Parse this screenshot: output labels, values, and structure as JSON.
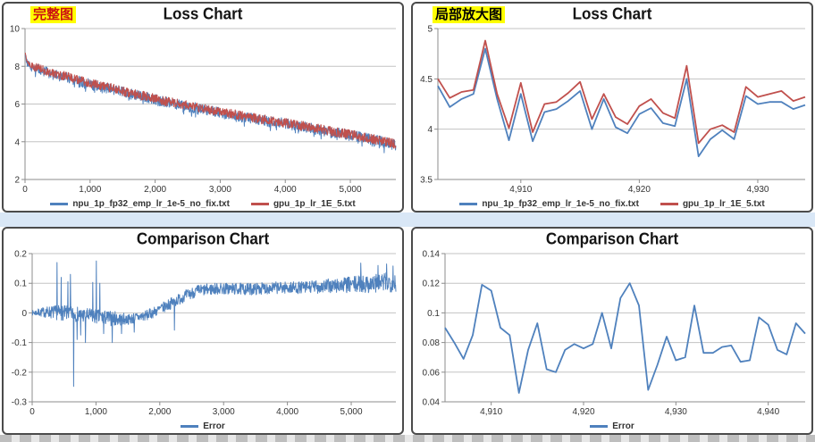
{
  "page": {
    "highlight": "#ffff00",
    "divider_color": "#d9e7f6",
    "accent_blue": "#4f81bd",
    "accent_red": "#c0504d"
  },
  "chart_data": [
    {
      "type": "line",
      "title": "Loss Chart",
      "corner_label": "完整图",
      "corner_label_color": "#cc1111",
      "xlim": [
        0,
        5700
      ],
      "ylim": [
        2,
        10
      ],
      "xticks": [
        0,
        1000,
        2000,
        3000,
        4000,
        5000
      ],
      "xtick_labels": [
        "0",
        "1,000",
        "2,000",
        "3,000",
        "4,000",
        "5,000"
      ],
      "yticks": [
        2,
        4,
        6,
        8,
        10
      ],
      "ytick_labels": [
        "2",
        "4",
        "6",
        "8",
        "10"
      ],
      "grid": true,
      "legend_position": "bottom",
      "margin_left": 24,
      "line_width": 1,
      "legend": [
        {
          "label": "npu_1p_fp32_emp_lr_1e-5_no_fix.txt",
          "color": "#4f81bd"
        },
        {
          "label": "gpu_1p_lr_1E_5.txt",
          "color": "#c0504d"
        }
      ],
      "series": [
        {
          "name": "npu_1p_fp32_emp_lr_1e-5_no_fix.txt",
          "color": "#4f81bd",
          "gen": {
            "seed": 101,
            "step": 5,
            "offset": -0.05,
            "extra_dip": 0.3,
            "keypoints": [
              [
                0,
                8.7
              ],
              [
                30,
                8.3
              ],
              [
                100,
                8.05
              ],
              [
                200,
                7.9
              ],
              [
                400,
                7.65
              ],
              [
                600,
                7.5
              ],
              [
                800,
                7.3
              ],
              [
                1000,
                7.1
              ],
              [
                1200,
                6.95
              ],
              [
                1400,
                6.78
              ],
              [
                1600,
                6.6
              ],
              [
                1800,
                6.45
              ],
              [
                2000,
                6.28
              ],
              [
                2200,
                6.12
              ],
              [
                2400,
                6.0
              ],
              [
                2600,
                5.85
              ],
              [
                2800,
                5.72
              ],
              [
                3000,
                5.6
              ],
              [
                3200,
                5.47
              ],
              [
                3400,
                5.35
              ],
              [
                3600,
                5.22
              ],
              [
                3800,
                5.1
              ],
              [
                4000,
                5.0
              ],
              [
                4200,
                4.87
              ],
              [
                4400,
                4.75
              ],
              [
                4600,
                4.62
              ],
              [
                4800,
                4.5
              ],
              [
                5000,
                4.38
              ],
              [
                5200,
                4.25
              ],
              [
                5400,
                4.1
              ],
              [
                5600,
                3.95
              ],
              [
                5700,
                3.87
              ]
            ],
            "amp_zones": [
              [
                0,
                0.1
              ],
              [
                150,
                0.28
              ],
              [
                5700,
                0.3
              ]
            ]
          }
        },
        {
          "name": "gpu_1p_lr_1E_5.txt",
          "color": "#c0504d",
          "gen": {
            "seed": 55,
            "step": 5,
            "offset": 0,
            "keypoints": [
              [
                0,
                8.7
              ],
              [
                30,
                8.3
              ],
              [
                100,
                8.05
              ],
              [
                200,
                7.9
              ],
              [
                400,
                7.65
              ],
              [
                600,
                7.5
              ],
              [
                800,
                7.3
              ],
              [
                1000,
                7.1
              ],
              [
                1200,
                6.95
              ],
              [
                1400,
                6.78
              ],
              [
                1600,
                6.6
              ],
              [
                1800,
                6.45
              ],
              [
                2000,
                6.28
              ],
              [
                2200,
                6.12
              ],
              [
                2400,
                6.0
              ],
              [
                2600,
                5.85
              ],
              [
                2800,
                5.72
              ],
              [
                3000,
                5.6
              ],
              [
                3200,
                5.47
              ],
              [
                3400,
                5.35
              ],
              [
                3600,
                5.22
              ],
              [
                3800,
                5.1
              ],
              [
                4000,
                5.0
              ],
              [
                4200,
                4.87
              ],
              [
                4400,
                4.75
              ],
              [
                4600,
                4.62
              ],
              [
                4800,
                4.5
              ],
              [
                5000,
                4.38
              ],
              [
                5200,
                4.25
              ],
              [
                5400,
                4.1
              ],
              [
                5600,
                3.95
              ],
              [
                5700,
                3.87
              ]
            ],
            "amp_zones": [
              [
                0,
                0.09
              ],
              [
                150,
                0.24
              ],
              [
                5700,
                0.26
              ]
            ]
          }
        }
      ]
    },
    {
      "type": "line",
      "title": "Loss Chart",
      "corner_label": "局部放大图",
      "corner_label_color": "#000000",
      "xlim": [
        4903,
        4934
      ],
      "ylim": [
        3.5,
        5
      ],
      "xticks": [
        4910,
        4920,
        4930
      ],
      "xtick_labels": [
        "4,910",
        "4,920",
        "4,930"
      ],
      "yticks": [
        3.5,
        4,
        4.5,
        5
      ],
      "ytick_labels": [
        "3.5",
        "4",
        "4.5",
        "5"
      ],
      "grid": true,
      "legend_position": "bottom",
      "margin_left": 28,
      "line_width": 1.8,
      "legend": [
        {
          "label": "npu_1p_fp32_emp_lr_1e-5_no_fix.txt",
          "color": "#4f81bd"
        },
        {
          "label": "gpu_1p_lr_1E_5.txt",
          "color": "#c0504d"
        }
      ],
      "series": [
        {
          "name": "npu_1p_fp32_emp_lr_1e-5_no_fix.txt",
          "color": "#4f81bd",
          "x_start": 4903,
          "x_step": 1,
          "values": [
            4.43,
            4.22,
            4.3,
            4.35,
            4.8,
            4.3,
            3.89,
            4.35,
            3.88,
            4.17,
            4.2,
            4.28,
            4.38,
            4.0,
            4.3,
            4.02,
            3.96,
            4.15,
            4.21,
            4.06,
            4.03,
            4.5,
            3.73,
            3.9,
            3.99,
            3.9,
            4.33,
            4.25,
            4.27,
            4.27,
            4.2,
            4.24
          ]
        },
        {
          "name": "gpu_1p_lr_1E_5.txt",
          "color": "#c0504d",
          "x_start": 4903,
          "x_step": 1,
          "values": [
            4.5,
            4.31,
            4.37,
            4.39,
            4.88,
            4.35,
            4.01,
            4.46,
            3.97,
            4.25,
            4.27,
            4.36,
            4.47,
            4.1,
            4.35,
            4.12,
            4.05,
            4.23,
            4.3,
            4.16,
            4.11,
            4.63,
            3.86,
            4.0,
            4.04,
            3.97,
            4.42,
            4.32,
            4.35,
            4.38,
            4.28,
            4.32
          ]
        }
      ]
    },
    {
      "type": "line",
      "title": "Comparison Chart",
      "xlim": [
        0,
        5700
      ],
      "ylim": [
        -0.3,
        0.2
      ],
      "xticks": [
        0,
        1000,
        2000,
        3000,
        4000,
        5000
      ],
      "xtick_labels": [
        "0",
        "1,000",
        "2,000",
        "3,000",
        "4,000",
        "5,000"
      ],
      "yticks": [
        -0.3,
        -0.2,
        -0.1,
        0,
        0.1,
        0.2
      ],
      "ytick_labels": [
        "-0.3",
        "-0.2",
        "-0.1",
        "0",
        "0.1",
        "0.2"
      ],
      "grid": true,
      "legend_position": "bottom",
      "margin_left": 32,
      "line_width": 1,
      "legend": [
        {
          "label": "Error",
          "color": "#4f81bd"
        }
      ],
      "series": [
        {
          "name": "Error",
          "color": "#4f81bd",
          "gen": {
            "seed": 7,
            "step": 5,
            "offset": 0,
            "keypoints": [
              [
                0,
                0
              ],
              [
                250,
                0.003
              ],
              [
                600,
                -0.002
              ],
              [
                900,
                -0.01
              ],
              [
                1200,
                -0.018
              ],
              [
                1500,
                -0.022
              ],
              [
                1800,
                -0.008
              ],
              [
                2000,
                0.012
              ],
              [
                2200,
                0.035
              ],
              [
                2400,
                0.058
              ],
              [
                2600,
                0.075
              ],
              [
                2900,
                0.082
              ],
              [
                3400,
                0.08
              ],
              [
                3800,
                0.085
              ],
              [
                4200,
                0.085
              ],
              [
                4600,
                0.09
              ],
              [
                5000,
                0.095
              ],
              [
                5400,
                0.1
              ],
              [
                5700,
                0.105
              ]
            ],
            "amp_zones": [
              [
                0,
                0.008
              ],
              [
                200,
                0.018
              ],
              [
                400,
                0.025
              ],
              [
                1300,
                0.025
              ],
              [
                1500,
                0.018
              ],
              [
                1900,
                0.018
              ],
              [
                2600,
                0.02
              ],
              [
                4200,
                0.02
              ],
              [
                5000,
                0.028
              ],
              [
                5700,
                0.035
              ]
            ],
            "spikes": [
              [
                390,
                0.17
              ],
              [
                455,
                0.12
              ],
              [
                560,
                0.105
              ],
              [
                600,
                0.13
              ],
              [
                650,
                -0.248
              ],
              [
                705,
                -0.09
              ],
              [
                760,
                -0.075
              ],
              [
                835,
                -0.1
              ],
              [
                950,
                0.103
              ],
              [
                1005,
                0.175
              ],
              [
                1060,
                0.1
              ],
              [
                1120,
                -0.07
              ],
              [
                1255,
                -0.1
              ],
              [
                1400,
                -0.07
              ],
              [
                1600,
                -0.065
              ],
              [
                2230,
                -0.058
              ],
              [
                5150,
                0.168
              ],
              [
                5420,
                0.16
              ],
              [
                5555,
                0.165
              ],
              [
                5655,
                0.158
              ]
            ]
          }
        }
      ]
    },
    {
      "type": "line",
      "title": "Comparison Chart",
      "xlim": [
        4905,
        4944
      ],
      "ylim": [
        0.04,
        0.14
      ],
      "xticks": [
        4910,
        4920,
        4930,
        4940
      ],
      "xtick_labels": [
        "4,910",
        "4,920",
        "4,930",
        "4,940"
      ],
      "yticks": [
        0.04,
        0.06,
        0.08,
        0.1,
        0.12,
        0.14
      ],
      "ytick_labels": [
        "0.04",
        "0.06",
        "0.08",
        "0.1",
        "0.12",
        "0.14"
      ],
      "grid": true,
      "legend_position": "bottom",
      "margin_left": 36,
      "line_width": 1.8,
      "legend": [
        {
          "label": "Error",
          "color": "#4f81bd"
        }
      ],
      "series": [
        {
          "name": "Error",
          "color": "#4f81bd",
          "x_start": 4905,
          "x_step": 1,
          "values": [
            0.09,
            0.08,
            0.069,
            0.085,
            0.119,
            0.115,
            0.09,
            0.085,
            0.046,
            0.075,
            0.093,
            0.062,
            0.06,
            0.075,
            0.079,
            0.076,
            0.079,
            0.1,
            0.076,
            0.11,
            0.12,
            0.105,
            0.048,
            0.065,
            0.084,
            0.068,
            0.07,
            0.105,
            0.073,
            0.073,
            0.077,
            0.078,
            0.067,
            0.068,
            0.097,
            0.092,
            0.075,
            0.072,
            0.093,
            0.086
          ]
        }
      ]
    }
  ]
}
